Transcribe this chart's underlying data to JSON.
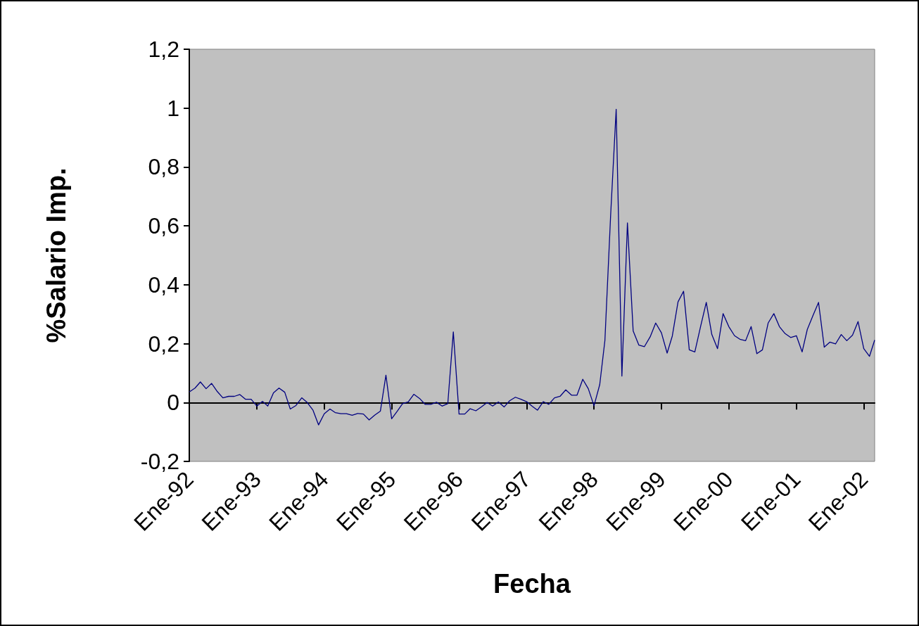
{
  "chart_data": {
    "type": "line",
    "xlabel": "Fecha",
    "ylabel": "%Salario Imp.",
    "x": [
      "1992-01",
      "1992-02",
      "1992-03",
      "1992-04",
      "1992-05",
      "1992-06",
      "1992-07",
      "1992-08",
      "1992-09",
      "1992-10",
      "1992-11",
      "1992-12",
      "1993-01",
      "1993-02",
      "1993-03",
      "1993-04",
      "1993-05",
      "1993-06",
      "1993-07",
      "1993-08",
      "1993-09",
      "1993-10",
      "1993-11",
      "1993-12",
      "1994-01",
      "1994-02",
      "1994-03",
      "1994-04",
      "1994-05",
      "1994-06",
      "1994-07",
      "1994-08",
      "1994-09",
      "1994-10",
      "1994-11",
      "1994-12",
      "1995-01",
      "1995-02",
      "1995-03",
      "1995-04",
      "1995-05",
      "1995-06",
      "1995-07",
      "1995-08",
      "1995-09",
      "1995-10",
      "1995-11",
      "1995-12",
      "1996-01",
      "1996-02",
      "1996-03",
      "1996-04",
      "1996-05",
      "1996-06",
      "1996-07",
      "1996-08",
      "1996-09",
      "1996-10",
      "1996-11",
      "1996-12",
      "1997-01",
      "1997-02",
      "1997-03",
      "1997-04",
      "1997-05",
      "1997-06",
      "1997-07",
      "1997-08",
      "1997-09",
      "1997-10",
      "1997-11",
      "1997-12",
      "1998-01",
      "1998-02",
      "1998-03",
      "1998-04",
      "1998-05",
      "1998-06",
      "1998-07",
      "1998-08",
      "1998-09",
      "1998-10",
      "1998-11",
      "1998-12",
      "1999-01",
      "1999-02",
      "1999-03",
      "1999-04",
      "1999-05",
      "1999-06",
      "1999-07",
      "1999-08",
      "1999-09",
      "1999-10",
      "1999-11",
      "1999-12",
      "2000-01",
      "2000-02",
      "2000-03",
      "2000-04",
      "2000-05",
      "2000-06",
      "2000-07",
      "2000-08",
      "2000-09",
      "2000-10",
      "2000-11",
      "2000-12",
      "2001-01",
      "2001-02",
      "2001-03",
      "2001-04",
      "2001-05",
      "2001-06",
      "2001-07",
      "2001-08",
      "2001-09",
      "2001-10",
      "2001-11",
      "2001-12",
      "2002-01",
      "2002-02",
      "2002-03"
    ],
    "series": [
      {
        "color": "#000080",
        "values": [
          0.036,
          0.049,
          0.07,
          0.047,
          0.065,
          0.037,
          0.016,
          0.021,
          0.021,
          0.027,
          0.011,
          0.011,
          -0.012,
          0.004,
          -0.012,
          0.033,
          0.049,
          0.035,
          -0.022,
          -0.01,
          0.016,
          0.0,
          -0.026,
          -0.076,
          -0.038,
          -0.022,
          -0.034,
          -0.038,
          -0.038,
          -0.043,
          -0.037,
          -0.039,
          -0.059,
          -0.043,
          -0.029,
          0.093,
          -0.055,
          -0.029,
          -0.004,
          0.002,
          0.028,
          0.014,
          -0.006,
          -0.006,
          0.001,
          -0.012,
          -0.004,
          0.24,
          -0.039,
          -0.039,
          -0.021,
          -0.028,
          -0.015,
          0.0,
          -0.012,
          0.002,
          -0.015,
          0.006,
          0.018,
          0.011,
          0.003,
          -0.013,
          -0.026,
          0.003,
          -0.006,
          0.016,
          0.021,
          0.043,
          0.025,
          0.025,
          0.079,
          0.047,
          -0.011,
          0.061,
          0.211,
          0.636,
          0.996,
          0.09,
          0.61,
          0.243,
          0.195,
          0.19,
          0.223,
          0.27,
          0.237,
          0.168,
          0.226,
          0.342,
          0.378,
          0.179,
          0.172,
          0.258,
          0.34,
          0.231,
          0.183,
          0.302,
          0.258,
          0.227,
          0.215,
          0.21,
          0.258,
          0.166,
          0.179,
          0.27,
          0.302,
          0.258,
          0.234,
          0.221,
          0.227,
          0.172,
          0.248,
          0.296,
          0.34,
          0.188,
          0.205,
          0.199,
          0.231,
          0.21,
          0.229,
          0.275,
          0.183,
          0.157,
          0.212
        ]
      }
    ],
    "xlim": [
      "1992-01",
      "2002-03"
    ],
    "xticks": [
      {
        "value": "1992-01",
        "label": "Ene-92"
      },
      {
        "value": "1993-01",
        "label": "Ene-93"
      },
      {
        "value": "1994-01",
        "label": "Ene-94"
      },
      {
        "value": "1995-01",
        "label": "Ene-95"
      },
      {
        "value": "1996-01",
        "label": "Ene-96"
      },
      {
        "value": "1997-01",
        "label": "Ene-97"
      },
      {
        "value": "1998-01",
        "label": "Ene-98"
      },
      {
        "value": "1999-01",
        "label": "Ene-99"
      },
      {
        "value": "2000-01",
        "label": "Ene-00"
      },
      {
        "value": "2001-01",
        "label": "Ene-01"
      },
      {
        "value": "2002-01",
        "label": "Ene-02"
      }
    ],
    "ylim": [
      -0.2,
      1.2
    ],
    "yticks": [
      {
        "value": -0.2,
        "label": "-0,2"
      },
      0,
      {
        "value": 0.2,
        "label": "0,2"
      },
      {
        "value": 0.4,
        "label": "0,4"
      },
      {
        "value": 0.6,
        "label": "0,6"
      },
      {
        "value": 0.8,
        "label": "0,8"
      },
      1,
      {
        "value": 1.2,
        "label": "1,2"
      }
    ],
    "marker": "none",
    "line_style": "solid"
  }
}
